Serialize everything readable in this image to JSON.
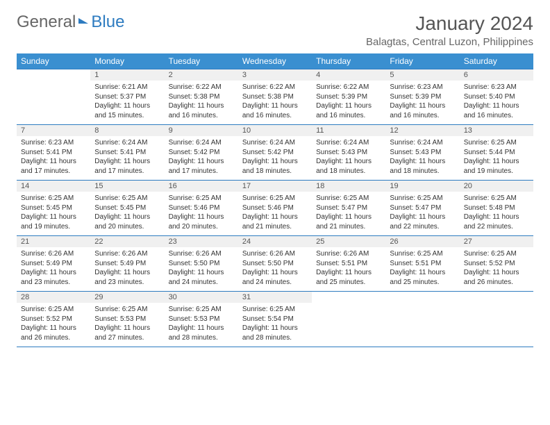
{
  "brand": {
    "part1": "General",
    "part2": "Blue"
  },
  "title": "January 2024",
  "location": "Balagtas, Central Luzon, Philippines",
  "colors": {
    "header_bg": "#3a8fd0",
    "header_text": "#ffffff",
    "daynum_bg": "#f0f0f0",
    "border": "#2d7bc0",
    "text": "#333333",
    "muted": "#555555"
  },
  "weekdays": [
    "Sunday",
    "Monday",
    "Tuesday",
    "Wednesday",
    "Thursday",
    "Friday",
    "Saturday"
  ],
  "weeks": [
    {
      "nums": [
        "",
        "1",
        "2",
        "3",
        "4",
        "5",
        "6"
      ],
      "cells": [
        null,
        {
          "sunrise": "Sunrise: 6:21 AM",
          "sunset": "Sunset: 5:37 PM",
          "daylight": "Daylight: 11 hours and 15 minutes."
        },
        {
          "sunrise": "Sunrise: 6:22 AM",
          "sunset": "Sunset: 5:38 PM",
          "daylight": "Daylight: 11 hours and 16 minutes."
        },
        {
          "sunrise": "Sunrise: 6:22 AM",
          "sunset": "Sunset: 5:38 PM",
          "daylight": "Daylight: 11 hours and 16 minutes."
        },
        {
          "sunrise": "Sunrise: 6:22 AM",
          "sunset": "Sunset: 5:39 PM",
          "daylight": "Daylight: 11 hours and 16 minutes."
        },
        {
          "sunrise": "Sunrise: 6:23 AM",
          "sunset": "Sunset: 5:39 PM",
          "daylight": "Daylight: 11 hours and 16 minutes."
        },
        {
          "sunrise": "Sunrise: 6:23 AM",
          "sunset": "Sunset: 5:40 PM",
          "daylight": "Daylight: 11 hours and 16 minutes."
        }
      ]
    },
    {
      "nums": [
        "7",
        "8",
        "9",
        "10",
        "11",
        "12",
        "13"
      ],
      "cells": [
        {
          "sunrise": "Sunrise: 6:23 AM",
          "sunset": "Sunset: 5:41 PM",
          "daylight": "Daylight: 11 hours and 17 minutes."
        },
        {
          "sunrise": "Sunrise: 6:24 AM",
          "sunset": "Sunset: 5:41 PM",
          "daylight": "Daylight: 11 hours and 17 minutes."
        },
        {
          "sunrise": "Sunrise: 6:24 AM",
          "sunset": "Sunset: 5:42 PM",
          "daylight": "Daylight: 11 hours and 17 minutes."
        },
        {
          "sunrise": "Sunrise: 6:24 AM",
          "sunset": "Sunset: 5:42 PM",
          "daylight": "Daylight: 11 hours and 18 minutes."
        },
        {
          "sunrise": "Sunrise: 6:24 AM",
          "sunset": "Sunset: 5:43 PM",
          "daylight": "Daylight: 11 hours and 18 minutes."
        },
        {
          "sunrise": "Sunrise: 6:24 AM",
          "sunset": "Sunset: 5:43 PM",
          "daylight": "Daylight: 11 hours and 18 minutes."
        },
        {
          "sunrise": "Sunrise: 6:25 AM",
          "sunset": "Sunset: 5:44 PM",
          "daylight": "Daylight: 11 hours and 19 minutes."
        }
      ]
    },
    {
      "nums": [
        "14",
        "15",
        "16",
        "17",
        "18",
        "19",
        "20"
      ],
      "cells": [
        {
          "sunrise": "Sunrise: 6:25 AM",
          "sunset": "Sunset: 5:45 PM",
          "daylight": "Daylight: 11 hours and 19 minutes."
        },
        {
          "sunrise": "Sunrise: 6:25 AM",
          "sunset": "Sunset: 5:45 PM",
          "daylight": "Daylight: 11 hours and 20 minutes."
        },
        {
          "sunrise": "Sunrise: 6:25 AM",
          "sunset": "Sunset: 5:46 PM",
          "daylight": "Daylight: 11 hours and 20 minutes."
        },
        {
          "sunrise": "Sunrise: 6:25 AM",
          "sunset": "Sunset: 5:46 PM",
          "daylight": "Daylight: 11 hours and 21 minutes."
        },
        {
          "sunrise": "Sunrise: 6:25 AM",
          "sunset": "Sunset: 5:47 PM",
          "daylight": "Daylight: 11 hours and 21 minutes."
        },
        {
          "sunrise": "Sunrise: 6:25 AM",
          "sunset": "Sunset: 5:47 PM",
          "daylight": "Daylight: 11 hours and 22 minutes."
        },
        {
          "sunrise": "Sunrise: 6:25 AM",
          "sunset": "Sunset: 5:48 PM",
          "daylight": "Daylight: 11 hours and 22 minutes."
        }
      ]
    },
    {
      "nums": [
        "21",
        "22",
        "23",
        "24",
        "25",
        "26",
        "27"
      ],
      "cells": [
        {
          "sunrise": "Sunrise: 6:26 AM",
          "sunset": "Sunset: 5:49 PM",
          "daylight": "Daylight: 11 hours and 23 minutes."
        },
        {
          "sunrise": "Sunrise: 6:26 AM",
          "sunset": "Sunset: 5:49 PM",
          "daylight": "Daylight: 11 hours and 23 minutes."
        },
        {
          "sunrise": "Sunrise: 6:26 AM",
          "sunset": "Sunset: 5:50 PM",
          "daylight": "Daylight: 11 hours and 24 minutes."
        },
        {
          "sunrise": "Sunrise: 6:26 AM",
          "sunset": "Sunset: 5:50 PM",
          "daylight": "Daylight: 11 hours and 24 minutes."
        },
        {
          "sunrise": "Sunrise: 6:26 AM",
          "sunset": "Sunset: 5:51 PM",
          "daylight": "Daylight: 11 hours and 25 minutes."
        },
        {
          "sunrise": "Sunrise: 6:25 AM",
          "sunset": "Sunset: 5:51 PM",
          "daylight": "Daylight: 11 hours and 25 minutes."
        },
        {
          "sunrise": "Sunrise: 6:25 AM",
          "sunset": "Sunset: 5:52 PM",
          "daylight": "Daylight: 11 hours and 26 minutes."
        }
      ]
    },
    {
      "nums": [
        "28",
        "29",
        "30",
        "31",
        "",
        "",
        ""
      ],
      "cells": [
        {
          "sunrise": "Sunrise: 6:25 AM",
          "sunset": "Sunset: 5:52 PM",
          "daylight": "Daylight: 11 hours and 26 minutes."
        },
        {
          "sunrise": "Sunrise: 6:25 AM",
          "sunset": "Sunset: 5:53 PM",
          "daylight": "Daylight: 11 hours and 27 minutes."
        },
        {
          "sunrise": "Sunrise: 6:25 AM",
          "sunset": "Sunset: 5:53 PM",
          "daylight": "Daylight: 11 hours and 28 minutes."
        },
        {
          "sunrise": "Sunrise: 6:25 AM",
          "sunset": "Sunset: 5:54 PM",
          "daylight": "Daylight: 11 hours and 28 minutes."
        },
        null,
        null,
        null
      ]
    }
  ]
}
